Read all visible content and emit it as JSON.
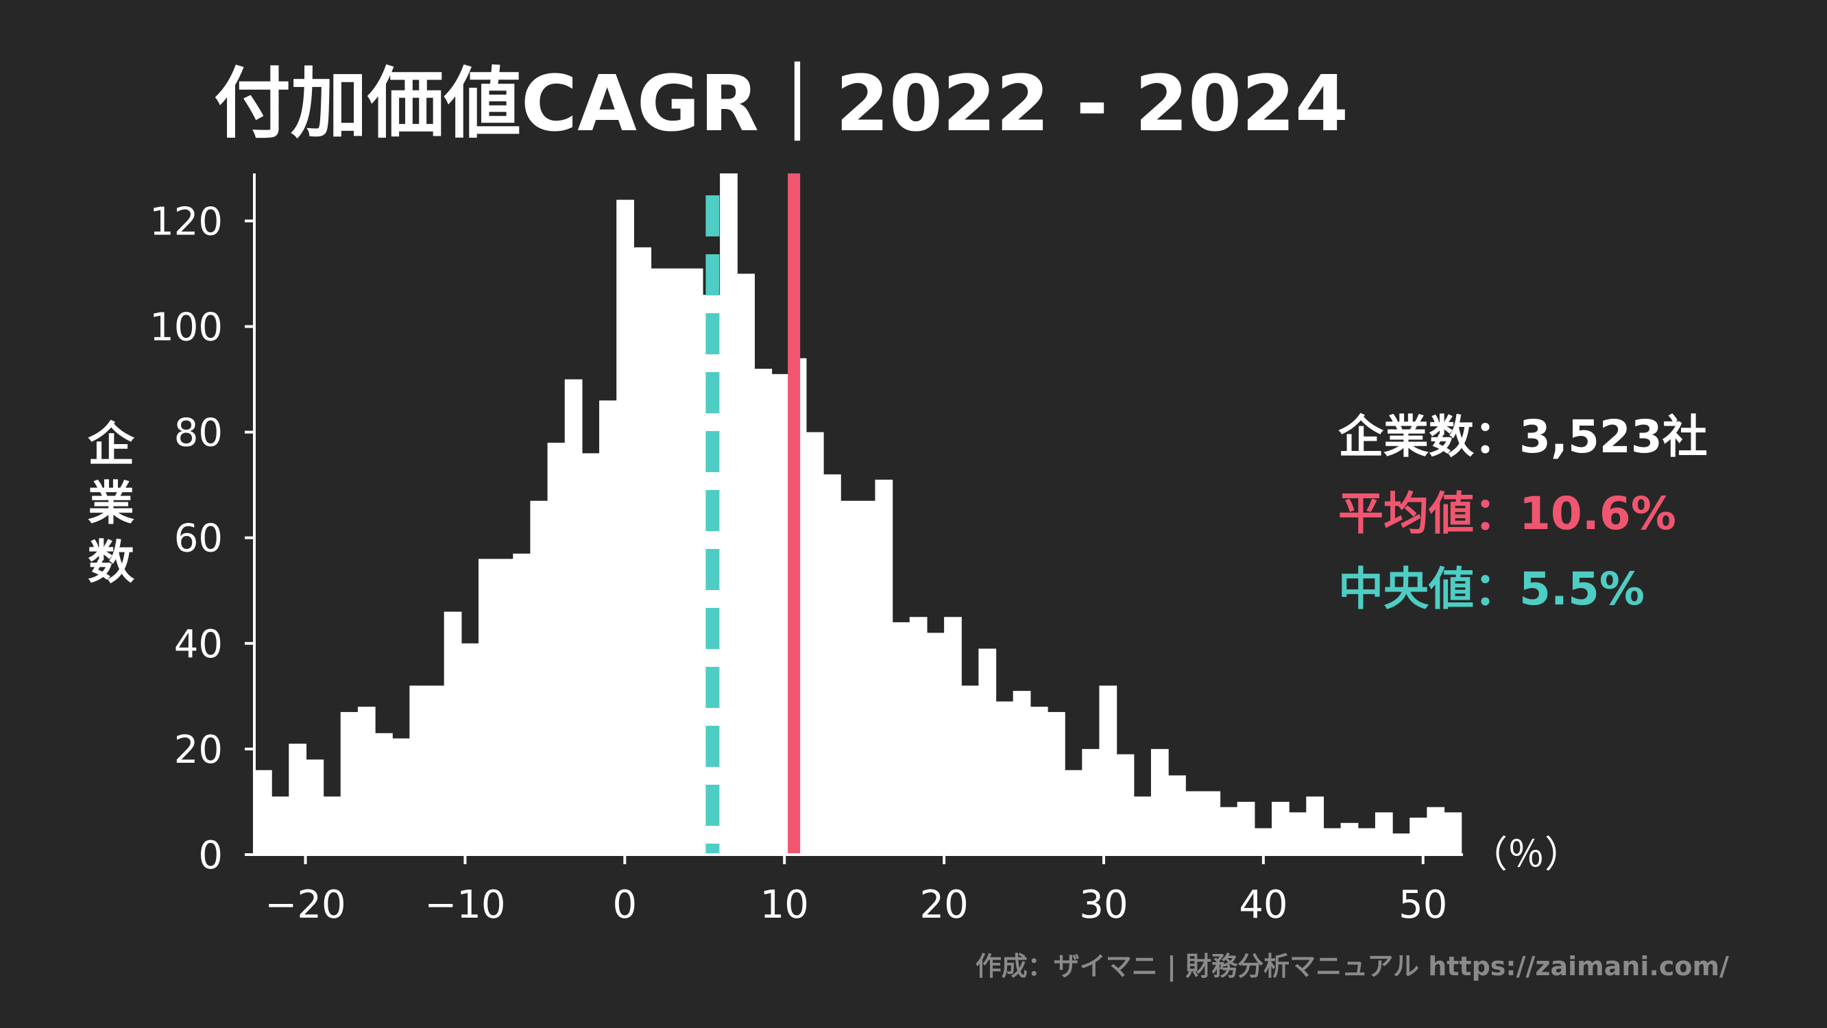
{
  "title": "付加価値CAGR｜2022 - 2024",
  "colors": {
    "background": "#272727",
    "bars": "#ffffff",
    "mean": "#f0566f",
    "median": "#4ecdc4",
    "credit": "#8a8a8a"
  },
  "stats": {
    "count_label": "企業数：",
    "count_value": "3,523社",
    "mean_label": "平均値：",
    "mean_value": "10.6%",
    "median_label": "中央値：",
    "median_value": "5.5%"
  },
  "credit": "作成：ザイマニ | 財務分析マニュアル https://zaimani.com/",
  "chart_data": {
    "type": "bar",
    "title": "付加価値CAGR｜2022 - 2024",
    "ylabel": "企業数",
    "xunit": "（％）",
    "xlim": [
      -23.2,
      52.5
    ],
    "ylim": [
      0,
      129
    ],
    "xticks": [
      -20,
      -10,
      0,
      10,
      20,
      30,
      40,
      50
    ],
    "xtick_labels": [
      "−20",
      "−10",
      "0",
      "10",
      "20",
      "30",
      "40",
      "50"
    ],
    "yticks": [
      0,
      20,
      40,
      60,
      80,
      100,
      120
    ],
    "ytick_labels": [
      "0",
      "20",
      "40",
      "60",
      "80",
      "100",
      "120"
    ],
    "bin_start": -23.2,
    "bin_width": 1.08,
    "values": [
      16,
      11,
      21,
      18,
      11,
      27,
      28,
      23,
      22,
      32,
      32,
      46,
      40,
      56,
      56,
      57,
      67,
      78,
      90,
      76,
      86,
      124,
      115,
      111,
      111,
      111,
      106,
      129,
      110,
      92,
      91,
      94,
      80,
      72,
      67,
      67,
      71,
      44,
      45,
      42,
      45,
      32,
      39,
      29,
      31,
      28,
      27,
      16,
      20,
      32,
      19,
      11,
      20,
      15,
      12,
      12,
      9,
      10,
      5,
      10,
      8,
      11,
      5,
      6,
      5,
      8,
      4,
      7,
      9,
      8
    ],
    "mean": 10.6,
    "median": 5.5,
    "grid": false,
    "legend": "right"
  }
}
